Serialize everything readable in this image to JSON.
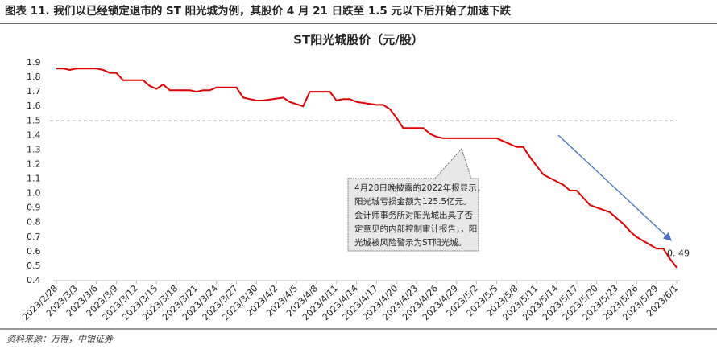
{
  "header": "图表 11. 我们以已经锁定退市的 ST 阳光城为例，其股价 4 月 21 日跌至 1.5 元以下后开始了加速下跌",
  "source": "资料来源：万得，中银证券",
  "chart_data": {
    "type": "line",
    "title": "ST阳光城股价（元/股）",
    "color": "#e00000",
    "x": [
      "2023/2/28",
      "2023/3/1",
      "2023/3/2",
      "2023/3/3",
      "2023/3/6",
      "2023/3/7",
      "2023/3/8",
      "2023/3/9",
      "2023/3/10",
      "2023/3/13",
      "2023/3/14",
      "2023/3/15",
      "2023/3/16",
      "2023/3/17",
      "2023/3/20",
      "2023/3/21",
      "2023/3/22",
      "2023/3/23",
      "2023/3/24",
      "2023/3/27",
      "2023/3/28",
      "2023/3/29",
      "2023/3/30",
      "2023/3/31",
      "2023/4/3",
      "2023/4/4",
      "2023/4/6",
      "2023/4/7",
      "2023/4/10",
      "2023/4/11",
      "2023/4/12",
      "2023/4/13",
      "2023/4/14",
      "2023/4/17",
      "2023/4/18",
      "2023/4/19",
      "2023/4/20",
      "2023/4/21",
      "2023/4/24",
      "2023/4/25",
      "2023/4/26",
      "2023/4/27",
      "2023/4/28",
      "2023/5/4",
      "2023/5/5",
      "2023/5/8",
      "2023/5/9",
      "2023/5/10",
      "2023/5/11",
      "2023/5/12",
      "2023/5/15",
      "2023/5/16",
      "2023/5/17",
      "2023/5/18",
      "2023/5/19",
      "2023/5/22",
      "2023/5/23",
      "2023/5/24",
      "2023/5/25",
      "2023/5/26",
      "2023/5/29",
      "2023/5/30",
      "2023/5/31",
      "2023/6/1"
    ],
    "values": [
      1.86,
      1.86,
      1.85,
      1.86,
      1.86,
      1.85,
      1.83,
      1.83,
      1.78,
      1.78,
      1.74,
      1.72,
      1.75,
      1.71,
      1.71,
      1.7,
      1.71,
      1.71,
      1.73,
      1.73,
      1.66,
      1.65,
      1.64,
      1.64,
      1.66,
      1.63,
      1.6,
      1.7,
      1.7,
      1.64,
      1.65,
      1.65,
      1.63,
      1.61,
      1.61,
      1.58,
      1.52,
      1.45,
      1.45,
      1.41,
      1.39,
      1.38,
      1.38,
      1.38,
      1.38,
      1.32,
      1.32,
      1.25,
      1.19,
      1.13,
      1.06,
      1.02,
      1.02,
      0.97,
      0.92,
      0.87,
      0.83,
      0.79,
      0.74,
      0.7,
      0.62,
      0.62,
      0.55,
      0.49
    ],
    "last_value_label": "0. 49",
    "reference_line": 1.5,
    "xlim": [
      "2023/2/28",
      "2023/6/1"
    ],
    "xticks": [
      "2023/2/28",
      "2023/3/3",
      "2023/3/6",
      "2023/3/9",
      "2023/3/12",
      "2023/3/15",
      "2023/3/18",
      "2023/3/21",
      "2023/3/24",
      "2023/3/27",
      "2023/3/30",
      "2023/4/2",
      "2023/4/5",
      "2023/4/8",
      "2023/4/11",
      "2023/4/14",
      "2023/4/17",
      "2023/4/20",
      "2023/4/23",
      "2023/4/26",
      "2023/4/29",
      "2023/5/2",
      "2023/5/5",
      "2023/5/8",
      "2023/5/11",
      "2023/5/14",
      "2023/5/17",
      "2023/5/20",
      "2023/5/23",
      "2023/5/26",
      "2023/5/29",
      "2023/6/1"
    ],
    "ylim": [
      0.4,
      1.9
    ],
    "yticks": [
      0.4,
      0.5,
      0.6,
      0.7,
      0.8,
      0.9,
      {
        "value": 1,
        "label": "1.0"
      },
      1.1,
      1.2,
      1.3,
      1.4,
      1.5,
      1.6,
      1.7,
      1.8,
      1.9
    ],
    "annotation": [
      "4月28日晚披露的2022年报显示，",
      "阳光城亏损金额为125.5亿元。",
      "会计师事务所对阳光城出具了否",
      "定意见的内部控制审计报告，，阳",
      "光城被风险警示为ST阳光城。"
    ]
  }
}
